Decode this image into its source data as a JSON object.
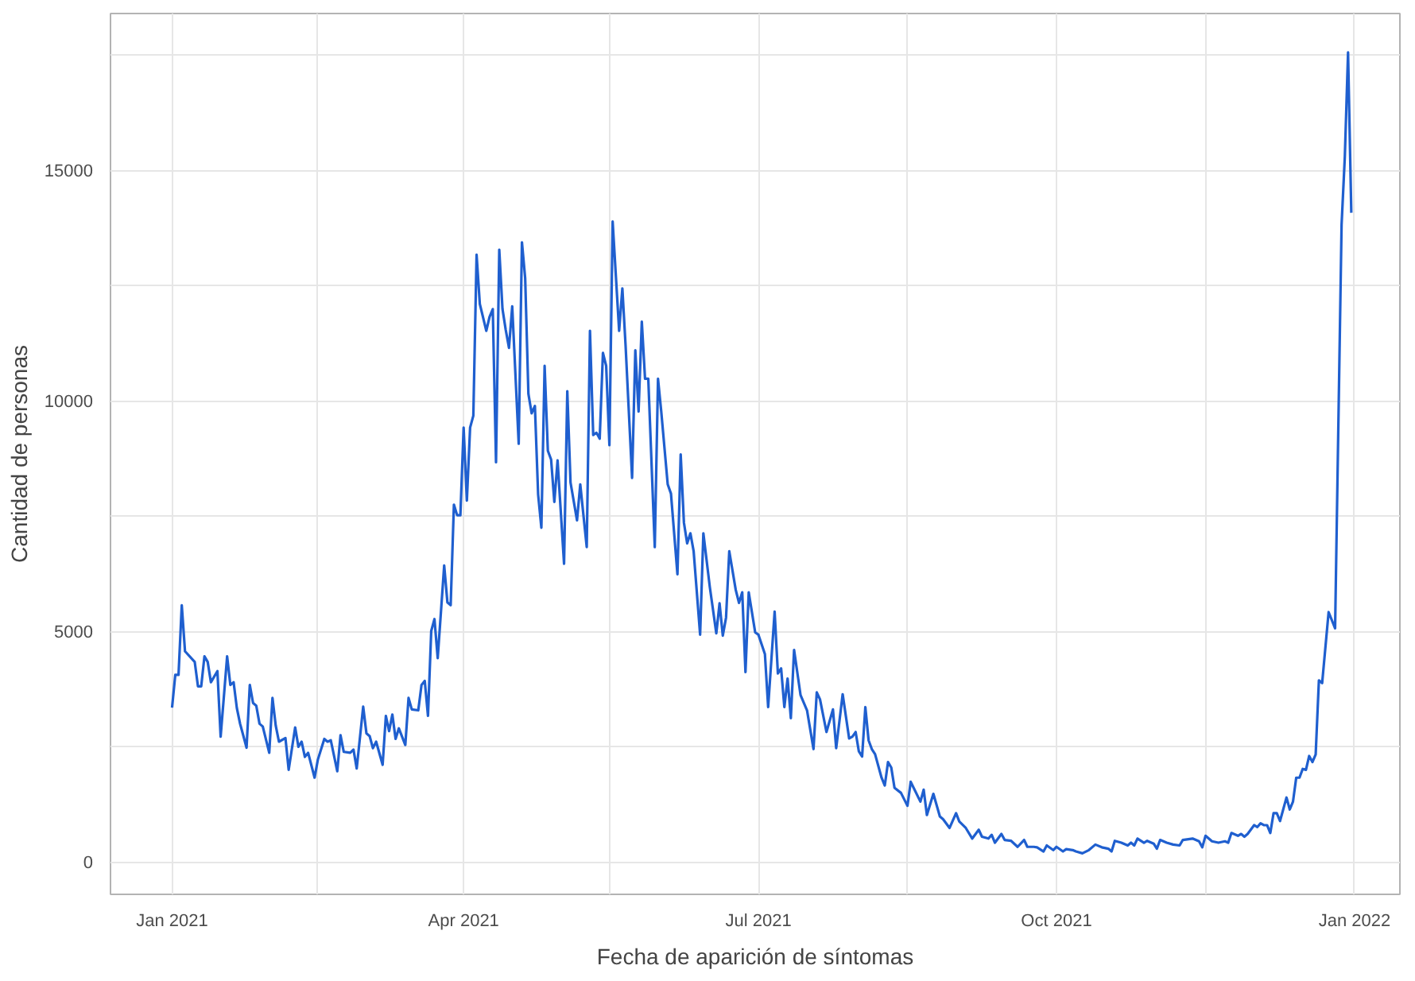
{
  "chart_data": {
    "type": "line",
    "xlabel": "Fecha de aparición de síntomas",
    "ylabel": "Cantidad de personas",
    "xlim": [
      "2020-12-13",
      "2022-01-15"
    ],
    "ylim": [
      -700,
      18400
    ],
    "xticks": [
      {
        "value": "2021-01-01",
        "label": "Jan 2021"
      },
      {
        "value": "2021-02-15",
        "label": null
      },
      {
        "value": "2021-04-01",
        "label": "Apr 2021"
      },
      {
        "value": "2021-05-16",
        "label": null
      },
      {
        "value": "2021-07-01",
        "label": "Jul 2021"
      },
      {
        "value": "2021-08-16",
        "label": null
      },
      {
        "value": "2021-10-01",
        "label": "Oct 2021"
      },
      {
        "value": "2021-11-16",
        "label": null
      },
      {
        "value": "2022-01-01",
        "label": "Jan 2022"
      }
    ],
    "yticks": [
      0,
      {
        "value": 2500,
        "label": null
      },
      5000,
      {
        "value": 7500,
        "label": null
      },
      10000,
      {
        "value": 12500,
        "label": null
      },
      15000,
      {
        "value": 17500,
        "label": null
      }
    ],
    "grid": true,
    "marker": "none",
    "line_style": "solid",
    "series": [
      {
        "color": "#1f5fcf",
        "x": [
          "2021-01-01",
          "2021-01-02",
          "2021-01-03",
          "2021-01-04",
          "2021-01-05",
          "2021-01-08",
          "2021-01-09",
          "2021-01-10",
          "2021-01-11",
          "2021-01-12",
          "2021-01-13",
          "2021-01-15",
          "2021-01-16",
          "2021-01-18",
          "2021-01-19",
          "2021-01-20",
          "2021-01-21",
          "2021-01-22",
          "2021-01-24",
          "2021-01-25",
          "2021-01-26",
          "2021-01-27",
          "2021-01-28",
          "2021-01-29",
          "2021-01-31",
          "2021-02-01",
          "2021-02-02",
          "2021-02-03",
          "2021-02-05",
          "2021-02-06",
          "2021-02-08",
          "2021-02-09",
          "2021-02-10",
          "2021-02-11",
          "2021-02-12",
          "2021-02-14",
          "2021-02-15",
          "2021-02-17",
          "2021-02-18",
          "2021-02-19",
          "2021-02-21",
          "2021-02-22",
          "2021-02-23",
          "2021-02-25",
          "2021-02-26",
          "2021-02-27",
          "2021-03-01",
          "2021-03-02",
          "2021-03-03",
          "2021-03-04",
          "2021-03-05",
          "2021-03-07",
          "2021-03-08",
          "2021-03-09",
          "2021-03-10",
          "2021-03-11",
          "2021-03-12",
          "2021-03-14",
          "2021-03-15",
          "2021-03-16",
          "2021-03-18",
          "2021-03-19",
          "2021-03-20",
          "2021-03-21",
          "2021-03-22",
          "2021-03-23",
          "2021-03-24",
          "2021-03-26",
          "2021-03-27",
          "2021-03-28",
          "2021-03-29",
          "2021-03-30",
          "2021-03-31",
          "2021-04-01",
          "2021-04-02",
          "2021-04-03",
          "2021-04-04",
          "2021-04-05",
          "2021-04-06",
          "2021-04-08",
          "2021-04-09",
          "2021-04-10",
          "2021-04-11",
          "2021-04-12",
          "2021-04-13",
          "2021-04-14",
          "2021-04-15",
          "2021-04-16",
          "2021-04-18",
          "2021-04-19",
          "2021-04-20",
          "2021-04-21",
          "2021-04-22",
          "2021-04-23",
          "2021-04-24",
          "2021-04-25",
          "2021-04-26",
          "2021-04-27",
          "2021-04-28",
          "2021-04-29",
          "2021-04-30",
          "2021-05-02",
          "2021-05-03",
          "2021-05-04",
          "2021-05-06",
          "2021-05-07",
          "2021-05-09",
          "2021-05-10",
          "2021-05-11",
          "2021-05-12",
          "2021-05-13",
          "2021-05-14",
          "2021-05-15",
          "2021-05-16",
          "2021-05-17",
          "2021-05-19",
          "2021-05-20",
          "2021-05-21",
          "2021-05-23",
          "2021-05-24",
          "2021-05-25",
          "2021-05-26",
          "2021-05-27",
          "2021-05-28",
          "2021-05-30",
          "2021-05-31",
          "2021-06-01",
          "2021-06-03",
          "2021-06-04",
          "2021-06-06",
          "2021-06-07",
          "2021-06-08",
          "2021-06-09",
          "2021-06-10",
          "2021-06-11",
          "2021-06-13",
          "2021-06-14",
          "2021-06-16",
          "2021-06-18",
          "2021-06-19",
          "2021-06-20",
          "2021-06-21",
          "2021-06-22",
          "2021-06-24",
          "2021-06-25",
          "2021-06-26",
          "2021-06-27",
          "2021-06-28",
          "2021-06-30",
          "2021-07-01",
          "2021-07-03",
          "2021-07-04",
          "2021-07-06",
          "2021-07-07",
          "2021-07-08",
          "2021-07-09",
          "2021-07-10",
          "2021-07-11",
          "2021-07-12",
          "2021-07-14",
          "2021-07-16",
          "2021-07-18",
          "2021-07-19",
          "2021-07-20",
          "2021-07-22",
          "2021-07-24",
          "2021-07-25",
          "2021-07-27",
          "2021-07-29",
          "2021-07-30",
          "2021-07-31",
          "2021-08-01",
          "2021-08-02",
          "2021-08-03",
          "2021-08-04",
          "2021-08-05",
          "2021-08-06",
          "2021-08-08",
          "2021-08-09",
          "2021-08-10",
          "2021-08-11",
          "2021-08-12",
          "2021-08-14",
          "2021-08-16",
          "2021-08-17",
          "2021-08-20",
          "2021-08-21",
          "2021-08-22",
          "2021-08-24",
          "2021-08-26",
          "2021-08-27",
          "2021-08-29",
          "2021-08-31",
          "2021-09-01",
          "2021-09-03",
          "2021-09-05",
          "2021-09-07",
          "2021-09-08",
          "2021-09-10",
          "2021-09-11",
          "2021-09-12",
          "2021-09-14",
          "2021-09-15",
          "2021-09-17",
          "2021-09-19",
          "2021-09-21",
          "2021-09-22",
          "2021-09-24",
          "2021-09-25",
          "2021-09-27",
          "2021-09-28",
          "2021-09-30",
          "2021-10-01",
          "2021-10-03",
          "2021-10-04",
          "2021-10-06",
          "2021-10-07",
          "2021-10-09",
          "2021-10-11",
          "2021-10-13",
          "2021-10-15",
          "2021-10-17",
          "2021-10-18",
          "2021-10-19",
          "2021-10-21",
          "2021-10-23",
          "2021-10-24",
          "2021-10-25",
          "2021-10-26",
          "2021-10-28",
          "2021-10-29",
          "2021-10-31",
          "2021-11-01",
          "2021-11-02",
          "2021-11-04",
          "2021-11-06",
          "2021-11-08",
          "2021-11-09",
          "2021-11-12",
          "2021-11-14",
          "2021-11-15",
          "2021-11-16",
          "2021-11-18",
          "2021-11-20",
          "2021-11-22",
          "2021-11-23",
          "2021-11-24",
          "2021-11-26",
          "2021-11-27",
          "2021-11-28",
          "2021-11-29",
          "2021-12-01",
          "2021-12-02",
          "2021-12-03",
          "2021-12-04",
          "2021-12-05",
          "2021-12-06",
          "2021-12-07",
          "2021-12-08",
          "2021-12-09",
          "2021-12-11",
          "2021-12-12",
          "2021-12-13",
          "2021-12-14",
          "2021-12-15",
          "2021-12-16",
          "2021-12-17",
          "2021-12-18",
          "2021-12-19",
          "2021-12-20",
          "2021-12-21",
          "2021-12-22",
          "2021-12-24",
          "2021-12-26",
          "2021-12-28",
          "2021-12-29",
          "2021-12-30",
          "2021-12-31"
        ],
        "values": [
          3350,
          4060,
          4060,
          5570,
          4570,
          4340,
          3810,
          3810,
          4460,
          4340,
          3900,
          4140,
          2720,
          4460,
          3840,
          3900,
          3340,
          3000,
          2480,
          3840,
          3450,
          3390,
          3000,
          2940,
          2370,
          3560,
          2960,
          2610,
          2690,
          2000,
          2920,
          2500,
          2610,
          2280,
          2370,
          1830,
          2220,
          2670,
          2610,
          2640,
          1970,
          2750,
          2390,
          2370,
          2440,
          2030,
          3370,
          2790,
          2730,
          2470,
          2610,
          2110,
          3170,
          2840,
          3200,
          2670,
          2900,
          2540,
          3560,
          3310,
          3290,
          3840,
          3930,
          3170,
          5010,
          5270,
          4420,
          6430,
          5630,
          5570,
          7750,
          7520,
          7520,
          9420,
          7840,
          9420,
          9680,
          13170,
          12100,
          11520,
          11820,
          11990,
          8670,
          13280,
          11990,
          11540,
          11150,
          12050,
          9070,
          13440,
          12660,
          10150,
          9730,
          9890,
          7970,
          7250,
          10760,
          8920,
          8730,
          7810,
          8710,
          6470,
          10210,
          8230,
          7410,
          8190,
          6830,
          11520,
          9260,
          9310,
          9180,
          11040,
          10760,
          9040,
          13890,
          11520,
          12440,
          11190,
          8330,
          11100,
          9770,
          11720,
          10480,
          10480,
          6830,
          10480,
          9770,
          8190,
          7990,
          6240,
          8840,
          7360,
          6910,
          7130,
          6740,
          4930,
          7130,
          5960,
          4960,
          5610,
          4910,
          5300,
          6740,
          5900,
          5620,
          5850,
          4120,
          5850,
          4980,
          4930,
          4510,
          3360,
          5430,
          4090,
          4200,
          3360,
          3980,
          3120,
          4600,
          3620,
          3290,
          2450,
          3680,
          3530,
          2820,
          3310,
          2470,
          3640,
          2680,
          2720,
          2820,
          2400,
          2290,
          3360,
          2640,
          2450,
          2340,
          1830,
          1660,
          2170,
          2050,
          1610,
          1500,
          1220,
          1740,
          1310,
          1570,
          1020,
          1480,
          990,
          930,
          740,
          1060,
          880,
          740,
          510,
          700,
          550,
          510,
          590,
          420,
          610,
          480,
          460,
          330,
          480,
          330,
          330,
          320,
          230,
          360,
          260,
          330,
          230,
          280,
          260,
          230,
          190,
          260,
          380,
          320,
          290,
          230,
          460,
          420,
          360,
          420,
          360,
          510,
          420,
          460,
          400,
          290,
          480,
          420,
          380,
          360,
          480,
          510,
          450,
          320,
          570,
          450,
          420,
          450,
          420,
          630,
          570,
          610,
          550,
          610,
          800,
          760,
          840,
          800,
          800,
          630,
          1060,
          1060,
          890,
          1400,
          1140,
          1310,
          1830,
          1830,
          2020,
          2000,
          2300,
          2170,
          2330,
          3940,
          3880,
          5420,
          5070,
          13820,
          15290,
          17560,
          14080
        ]
      }
    ]
  }
}
